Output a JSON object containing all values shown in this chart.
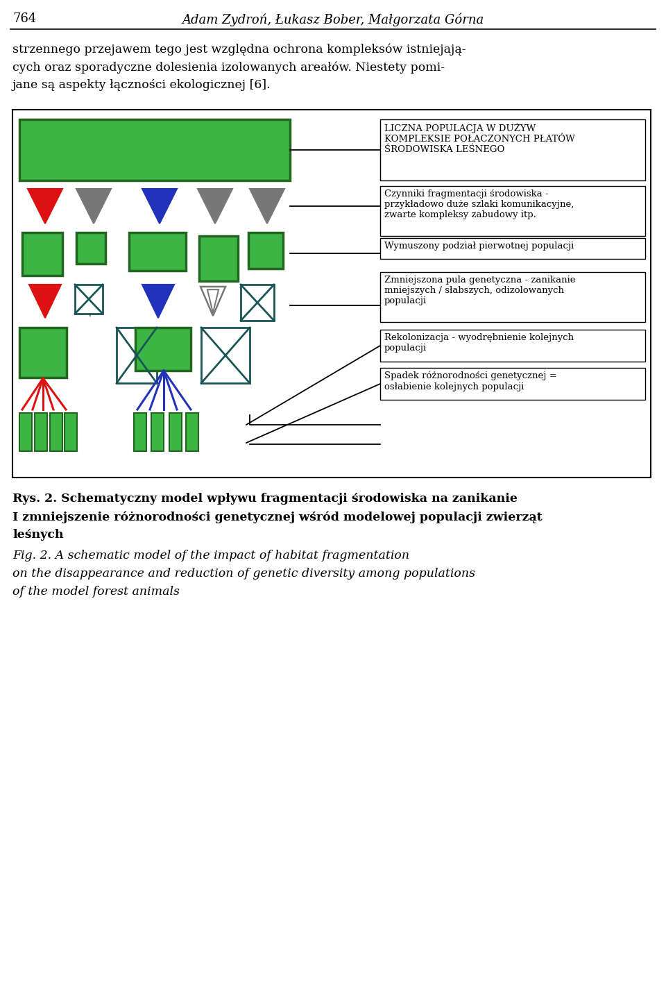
{
  "figure_width": 9.6,
  "figure_height": 14.35,
  "bg_color": "#ffffff",
  "header_text": "764",
  "header_center": "Adam Zydroń, Łukasz Bober, Małgorzata Górna",
  "para1_lines": [
    "strzennego przejawem tego jest względna ochrona kompleksów istniejają-",
    "cych oraz sporadyczne dolesienia izolowanych areałów. Niestety pomi-",
    "jane są aspekty łączności ekologicznej [6]."
  ],
  "green_color": "#3cb544",
  "dark_green": "#226622",
  "red_color": "#dd1111",
  "blue_color": "#2233bb",
  "gray_color": "#777777",
  "teal_color": "#1a5555",
  "label1": "LICZNA POPULACJA W DUŻYW\nKOMPLEKSIE POŁACZONYCH PŁATÓW\nŚRODOWISKA LEŚNEGO",
  "label2": "Czynniki fragmentacji środowiska -\nprzykładowo duże szlaki komunikacyjne,\nzwarte kompleksy zabudowy itp.",
  "label3": "Wymuszony podział pierwotnej populacji",
  "label4": "Zmniejszona pula genetyczna - zanikanie\nmniejszych / słabszych, odizolowanych\npopulacji",
  "label5": "Rekolonizacja - wyodrębnienie kolejnych\npopulacji",
  "label6": "Spadek różnorodności genetycznej =\nosłabienie kolejnych populacji",
  "caption_bold": "Rys. 2. Schematyczny model wpływu fragmentacji środowiska na zanikanie\nI zmniejszenie różnorodności genetycznej wśród modelowej populacji zwierząt\nleśnych",
  "caption_italic": "Fig. 2. A schematic model of the impact of habitat fragmentation\non the disappearance and reduction of genetic diversity among populations\nof the model forest animals"
}
